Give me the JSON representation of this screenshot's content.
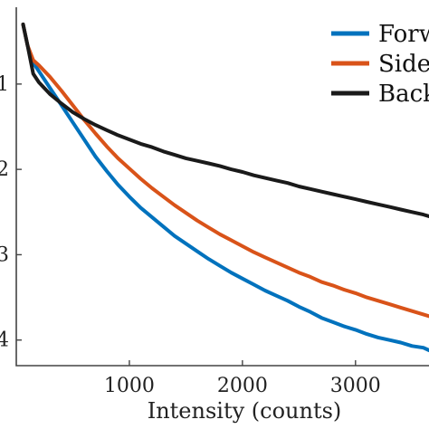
{
  "chart_data": {
    "type": "line",
    "xlabel": "Intensity (counts)",
    "xlim": [
      0,
      3650
    ],
    "ylim": [
      -4.3,
      -0.1
    ],
    "xticks": [
      {
        "value": 1000,
        "label": "1000"
      },
      {
        "value": 2000,
        "label": "2000"
      },
      {
        "value": 3000,
        "label": "3000"
      }
    ],
    "yticks": [
      {
        "value": -1,
        "label": "1"
      },
      {
        "value": -2,
        "label": "2"
      },
      {
        "value": -3,
        "label": "3"
      },
      {
        "value": -4,
        "label": "4"
      }
    ],
    "grid": false,
    "legend_position": "top-right",
    "series": [
      {
        "name": "Forw",
        "color": "#0072BD",
        "x": [
          60,
          100,
          150,
          200,
          300,
          400,
          500,
          600,
          700,
          800,
          900,
          1000,
          1100,
          1200,
          1300,
          1400,
          1500,
          1600,
          1700,
          1800,
          1900,
          2000,
          2100,
          2200,
          2300,
          2400,
          2500,
          2600,
          2700,
          2800,
          2900,
          3000,
          3100,
          3200,
          3300,
          3400,
          3500,
          3600,
          3650
        ],
        "y": [
          -0.3,
          -0.55,
          -0.75,
          -0.85,
          -1.05,
          -1.25,
          -1.45,
          -1.65,
          -1.85,
          -2.02,
          -2.18,
          -2.32,
          -2.45,
          -2.56,
          -2.67,
          -2.78,
          -2.87,
          -2.96,
          -3.05,
          -3.13,
          -3.21,
          -3.28,
          -3.35,
          -3.42,
          -3.48,
          -3.54,
          -3.61,
          -3.67,
          -3.74,
          -3.79,
          -3.84,
          -3.88,
          -3.93,
          -3.97,
          -4.0,
          -4.03,
          -4.07,
          -4.09,
          -4.12
        ]
      },
      {
        "name": "Side",
        "color": "#D95319",
        "x": [
          60,
          100,
          150,
          200,
          300,
          400,
          500,
          600,
          700,
          800,
          900,
          1000,
          1100,
          1200,
          1300,
          1400,
          1500,
          1600,
          1700,
          1800,
          1900,
          2000,
          2100,
          2200,
          2300,
          2400,
          2500,
          2600,
          2700,
          2800,
          2900,
          3000,
          3100,
          3200,
          3300,
          3400,
          3500,
          3600,
          3650
        ],
        "y": [
          -0.3,
          -0.55,
          -0.72,
          -0.78,
          -0.92,
          -1.08,
          -1.25,
          -1.42,
          -1.58,
          -1.73,
          -1.87,
          -1.99,
          -2.11,
          -2.22,
          -2.32,
          -2.42,
          -2.51,
          -2.6,
          -2.68,
          -2.76,
          -2.83,
          -2.9,
          -2.97,
          -3.03,
          -3.09,
          -3.15,
          -3.21,
          -3.26,
          -3.32,
          -3.36,
          -3.41,
          -3.45,
          -3.5,
          -3.54,
          -3.58,
          -3.62,
          -3.66,
          -3.7,
          -3.72
        ]
      },
      {
        "name": "Back",
        "color": "#1A1A1A",
        "x": [
          60,
          100,
          150,
          200,
          300,
          400,
          500,
          600,
          700,
          800,
          900,
          1000,
          1100,
          1200,
          1300,
          1400,
          1500,
          1600,
          1700,
          1800,
          1900,
          2000,
          2100,
          2200,
          2300,
          2400,
          2500,
          2600,
          2700,
          2800,
          2900,
          3000,
          3100,
          3200,
          3300,
          3400,
          3500,
          3600,
          3650
        ],
        "y": [
          -0.3,
          -0.55,
          -0.88,
          -0.98,
          -1.12,
          -1.23,
          -1.33,
          -1.41,
          -1.48,
          -1.54,
          -1.6,
          -1.65,
          -1.7,
          -1.74,
          -1.79,
          -1.83,
          -1.87,
          -1.9,
          -1.93,
          -1.96,
          -2.0,
          -2.03,
          -2.07,
          -2.1,
          -2.13,
          -2.16,
          -2.2,
          -2.23,
          -2.26,
          -2.29,
          -2.32,
          -2.35,
          -2.38,
          -2.41,
          -2.44,
          -2.47,
          -2.5,
          -2.53,
          -2.55
        ]
      }
    ]
  }
}
